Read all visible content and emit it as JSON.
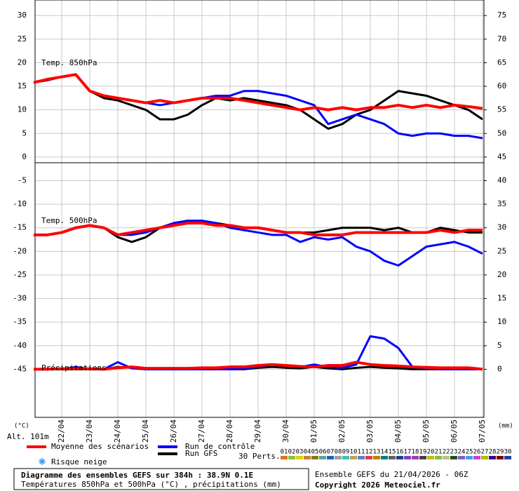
{
  "chart_data": {
    "type": "line",
    "panel_titles": [
      "Temp. 850hPa",
      "Temp. 500hPa",
      "Précipitations"
    ],
    "y_unit": "(°C)",
    "y2_unit": "(mm)",
    "altitude": "Alt. 101m",
    "categories": [
      null,
      null,
      "22/04",
      null,
      "23/04",
      null,
      "24/04",
      null,
      "25/04",
      null,
      "26/04",
      null,
      "27/04",
      null,
      "28/04",
      null,
      "29/04",
      null,
      "30/04",
      null,
      "01/05",
      null,
      "02/05",
      null,
      "03/05",
      null,
      "04/05",
      null,
      "05/05",
      null,
      "06/05",
      null,
      "07/05"
    ],
    "ylim": [
      -55.2,
      33.3
    ],
    "yticks": [
      30,
      25,
      20,
      15,
      10,
      5,
      0,
      -5,
      -10,
      -15,
      -20,
      -25,
      -30,
      -35,
      -40,
      -45
    ],
    "y2lim": [
      -10.2,
      78.3
    ],
    "y2ticks": [
      75,
      70,
      65,
      60,
      55,
      50,
      45,
      40,
      35,
      30,
      25,
      20,
      15,
      10,
      5,
      0
    ],
    "grid": true,
    "series": [
      {
        "name": "Moyenne des scénarios",
        "color": "#ff0000",
        "t850": [
          15.8,
          16.5,
          17,
          17.5,
          14,
          13,
          12.5,
          12,
          11.5,
          12,
          11.5,
          12,
          12.5,
          12.5,
          12.5,
          12,
          11.5,
          11,
          10.5,
          10,
          10.5,
          10,
          10.5,
          10,
          10.5,
          10.5,
          11,
          10.5,
          11,
          10.5,
          11,
          10.7,
          10.3
        ],
        "t500": [
          -16.5,
          -16.5,
          -16,
          -15,
          -14.5,
          -15,
          -16.5,
          -16,
          -15.5,
          -15,
          -14.5,
          -14,
          -14,
          -14.5,
          -14.5,
          -15,
          -15,
          -15.5,
          -16,
          -16,
          -16.5,
          -16.5,
          -16.5,
          -16,
          -16,
          -16,
          -16,
          -16,
          -16,
          -15.5,
          -16,
          -15.5,
          -15.5
        ],
        "precip": [
          0,
          0,
          0.1,
          0.1,
          0.1,
          0,
          0.3,
          0.5,
          0.2,
          0.2,
          0.2,
          0.2,
          0.3,
          0.3,
          0.5,
          0.5,
          0.8,
          1,
          0.8,
          0.6,
          0.5,
          0.8,
          0.8,
          1.5,
          1,
          0.8,
          0.7,
          0.5,
          0.4,
          0.3,
          0.3,
          0.3,
          0
        ]
      },
      {
        "name": "Run de contrôle",
        "color": "#0000ff",
        "t850": [
          15.8,
          16.5,
          17,
          17.5,
          14,
          13,
          12.5,
          12,
          11.5,
          11,
          11.5,
          12,
          12.5,
          13,
          13,
          14,
          14,
          13.5,
          13,
          12,
          11,
          7,
          8,
          9,
          8,
          7,
          5,
          4.5,
          5,
          5,
          4.5,
          4.5,
          4
        ],
        "t500": [
          -16.5,
          -16.5,
          -16,
          -15,
          -14.5,
          -15,
          -16.5,
          -16.5,
          -16,
          -15,
          -14,
          -13.5,
          -13.5,
          -14,
          -15,
          -15.5,
          -16,
          -16.5,
          -16.5,
          -18,
          -17,
          -17.5,
          -17,
          -19,
          -20,
          -22,
          -23,
          -21,
          -19,
          -18.5,
          -18,
          -19,
          -20.5
        ],
        "precip": [
          0,
          0,
          0,
          0.5,
          0,
          0,
          1.5,
          0.2,
          0,
          0,
          0,
          0,
          0,
          0,
          0,
          0.2,
          0.5,
          1,
          0.8,
          0.5,
          1,
          0.5,
          0.3,
          1,
          7,
          6.5,
          4.5,
          0.5,
          0.2,
          0,
          0,
          0,
          0
        ]
      },
      {
        "name": "Run GFS",
        "color": "#000000",
        "t850": [
          15.8,
          16.3,
          17,
          17.5,
          14,
          12.5,
          12,
          11,
          10,
          8,
          8,
          9,
          11,
          12.5,
          12,
          12.5,
          12,
          11.5,
          11,
          10,
          8,
          6,
          7,
          9,
          10,
          12,
          14,
          13.5,
          13,
          12,
          11,
          10,
          8
        ],
        "t500": [
          -16.5,
          -16.5,
          -16,
          -15,
          -14.5,
          -15,
          -17,
          -18,
          -17,
          -15,
          -14,
          -13.5,
          -14,
          -14,
          -14.5,
          -15,
          -15,
          -15.5,
          -16,
          -16,
          -16,
          -15.5,
          -15,
          -15,
          -15,
          -15.5,
          -15,
          -16,
          -16,
          -15,
          -15.5,
          -16,
          -16
        ],
        "precip": [
          0,
          0,
          0,
          0,
          0,
          0,
          0.5,
          0.3,
          0,
          0,
          0,
          0,
          0,
          0,
          0,
          0,
          0.3,
          0.5,
          0.3,
          0.2,
          0.5,
          0.2,
          0,
          0.3,
          0.5,
          0.3,
          0.2,
          0,
          0,
          0,
          0,
          0,
          0
        ]
      }
    ],
    "snow_label": "Risque neige",
    "perturbations": {
      "label": "30 Perts.",
      "members": [
        {
          "name": "01",
          "color": "#e07020"
        },
        {
          "name": "02",
          "color": "#90c040"
        },
        {
          "name": "03",
          "color": "#e0d000"
        },
        {
          "name": "04",
          "color": "#c08040"
        },
        {
          "name": "05",
          "color": "#808000"
        },
        {
          "name": "06",
          "color": "#60a0a0"
        },
        {
          "name": "07",
          "color": "#2060c0"
        },
        {
          "name": "08",
          "color": "#a0a0a0"
        },
        {
          "name": "09",
          "color": "#40c0c0"
        },
        {
          "name": "10",
          "color": "#c0a060"
        },
        {
          "name": "11",
          "color": "#6080c0"
        },
        {
          "name": "12",
          "color": "#e04040"
        },
        {
          "name": "13",
          "color": "#c08000"
        },
        {
          "name": "14",
          "color": "#008080"
        },
        {
          "name": "15",
          "color": "#606060"
        },
        {
          "name": "16",
          "color": "#204080"
        },
        {
          "name": "17",
          "color": "#8040c0"
        },
        {
          "name": "18",
          "color": "#a040a0"
        },
        {
          "name": "19",
          "color": "#404040"
        },
        {
          "name": "20",
          "color": "#c0c000"
        },
        {
          "name": "21",
          "color": "#80c040"
        },
        {
          "name": "22",
          "color": "#c0c080"
        },
        {
          "name": "23",
          "color": "#205020"
        },
        {
          "name": "24",
          "color": "#8060c0"
        },
        {
          "name": "25",
          "color": "#40a0e0"
        },
        {
          "name": "26",
          "color": "#d040d0"
        },
        {
          "name": "27",
          "color": "#a0c000"
        },
        {
          "name": "28",
          "color": "#400080"
        },
        {
          "name": "29",
          "color": "#800000"
        },
        {
          "name": "30",
          "color": "#2040a0"
        }
      ]
    },
    "footer": {
      "title": "Diagramme des ensembles GEFS sur 384h : 38.9N 0.1E",
      "subtitle": "Températures 850hPa et 500hPa (°C) , précipitations (mm)",
      "run": "Ensemble GEFS du 21/04/2026 - 06Z",
      "copyright": "Copyright 2026 Meteociel.fr"
    }
  }
}
